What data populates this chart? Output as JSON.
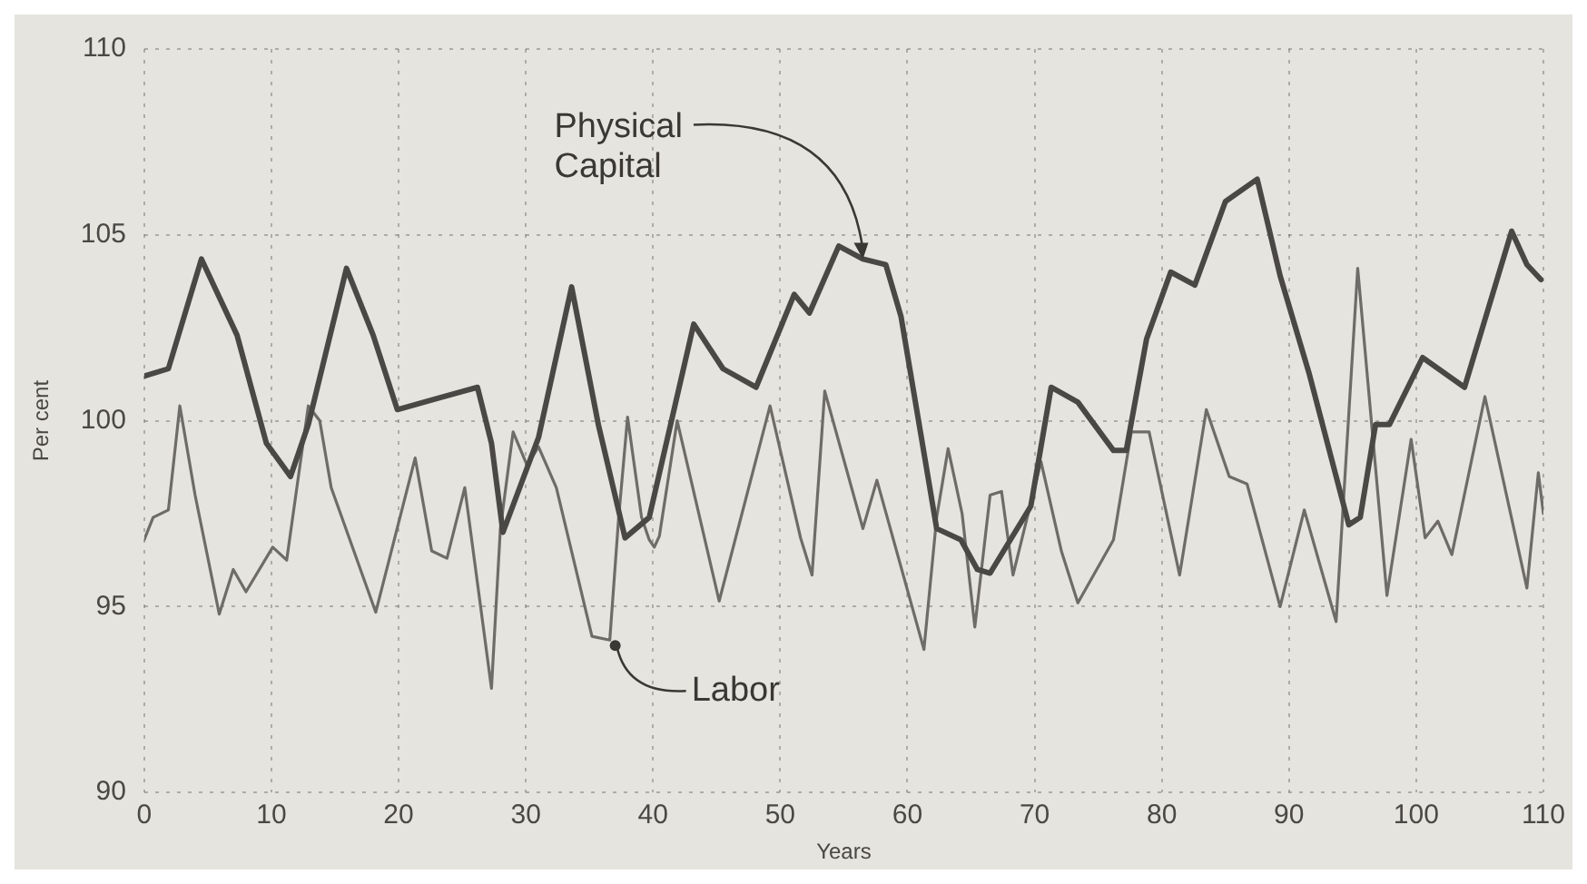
{
  "chart_data": {
    "type": "line",
    "xlabel": "Years",
    "ylabel": "Per cent",
    "xlim": [
      0,
      110
    ],
    "ylim": [
      90,
      110
    ],
    "xticks": [
      0,
      10,
      20,
      30,
      40,
      50,
      60,
      70,
      80,
      90,
      100,
      110
    ],
    "yticks": [
      90,
      95,
      100,
      105,
      110
    ],
    "grid": true,
    "legend": false,
    "marker": "none",
    "line_style": "solid",
    "annotations": [
      {
        "text": "Physical Capital",
        "x": 56.5,
        "y": 104.3
      },
      {
        "text": "Labor",
        "x": 36.6,
        "y": 94.1
      }
    ],
    "series": [
      {
        "color": "#4a4845",
        "x": [
          0,
          1.9,
          4.5,
          7.3,
          9.6,
          11.5,
          12.9,
          15.9,
          18,
          19.9,
          23,
          26.2,
          27.3,
          28.2,
          31,
          33.6,
          35.7,
          37.8,
          39.7,
          43.2,
          45.5,
          48.1,
          51.1,
          52.3,
          54.6,
          56.5,
          58.3,
          59.5,
          62.3,
          64.2,
          65.5,
          66.5,
          69.7,
          71.3,
          73.4,
          76.2,
          77.2,
          78.8,
          80.7,
          82.6,
          85,
          87.5,
          89.3,
          91.6,
          94.7,
          95.6,
          96.8,
          97.9,
          100.5,
          103.8,
          107.5,
          108.7,
          109.8
        ],
        "values": [
          101.2,
          101.4,
          104.35,
          102.3,
          99.4,
          98.5,
          99.9,
          104.1,
          102.3,
          100.3,
          100.6,
          100.9,
          99.4,
          97.0,
          99.55,
          103.6,
          99.9,
          96.85,
          97.4,
          102.6,
          101.4,
          100.9,
          103.4,
          102.9,
          104.7,
          104.35,
          104.2,
          102.8,
          97.1,
          96.8,
          96.0,
          95.9,
          97.7,
          100.9,
          100.5,
          99.2,
          99.2,
          102.2,
          104.0,
          103.65,
          105.9,
          106.5,
          103.9,
          101.25,
          97.2,
          97.4,
          99.9,
          99.9,
          101.7,
          100.9,
          105.1,
          104.2,
          103.8
        ]
      },
      {
        "color": "#6e6c68",
        "x": [
          0,
          0.7,
          1.9,
          2.8,
          4,
          5.9,
          7,
          8,
          10.1,
          11.2,
          12.9,
          13.8,
          14.7,
          18.2,
          21.3,
          22.6,
          23.8,
          25.2,
          27.3,
          28,
          29,
          30.1,
          31,
          32.4,
          35.2,
          36.6,
          37.3,
          38,
          39.1,
          39.7,
          40.1,
          40.5,
          41.9,
          45.2,
          49.2,
          51.6,
          52.5,
          53.5,
          56.5,
          57.6,
          61.3,
          62.3,
          63.2,
          64.3,
          65.3,
          66.5,
          67.4,
          68.3,
          70.5,
          72.1,
          73.4,
          76.2,
          77.6,
          79,
          81.4,
          83.5,
          85.3,
          86.7,
          89.3,
          91.2,
          93.7,
          95.4,
          97.7,
          99.6,
          100.7,
          101.7,
          102.8,
          105.4,
          108.7,
          109.6,
          110
        ],
        "values": [
          96.8,
          97.4,
          97.6,
          100.4,
          98.0,
          94.8,
          96.0,
          95.4,
          96.6,
          96.25,
          100.4,
          100.0,
          98.2,
          94.85,
          99.0,
          96.5,
          96.3,
          98.2,
          92.8,
          97.1,
          99.7,
          98.8,
          99.3,
          98.2,
          94.2,
          94.1,
          97.4,
          100.1,
          97.4,
          96.8,
          96.6,
          96.9,
          100.0,
          95.15,
          100.4,
          96.85,
          95.85,
          100.8,
          97.1,
          98.4,
          93.85,
          97.4,
          99.25,
          97.5,
          94.45,
          98.0,
          98.1,
          95.85,
          98.9,
          96.5,
          95.1,
          96.8,
          99.7,
          99.7,
          95.85,
          100.3,
          98.5,
          98.3,
          95.0,
          97.6,
          94.6,
          104.1,
          95.3,
          99.5,
          96.85,
          97.3,
          96.4,
          100.65,
          95.5,
          98.6,
          97.5
        ]
      }
    ]
  }
}
